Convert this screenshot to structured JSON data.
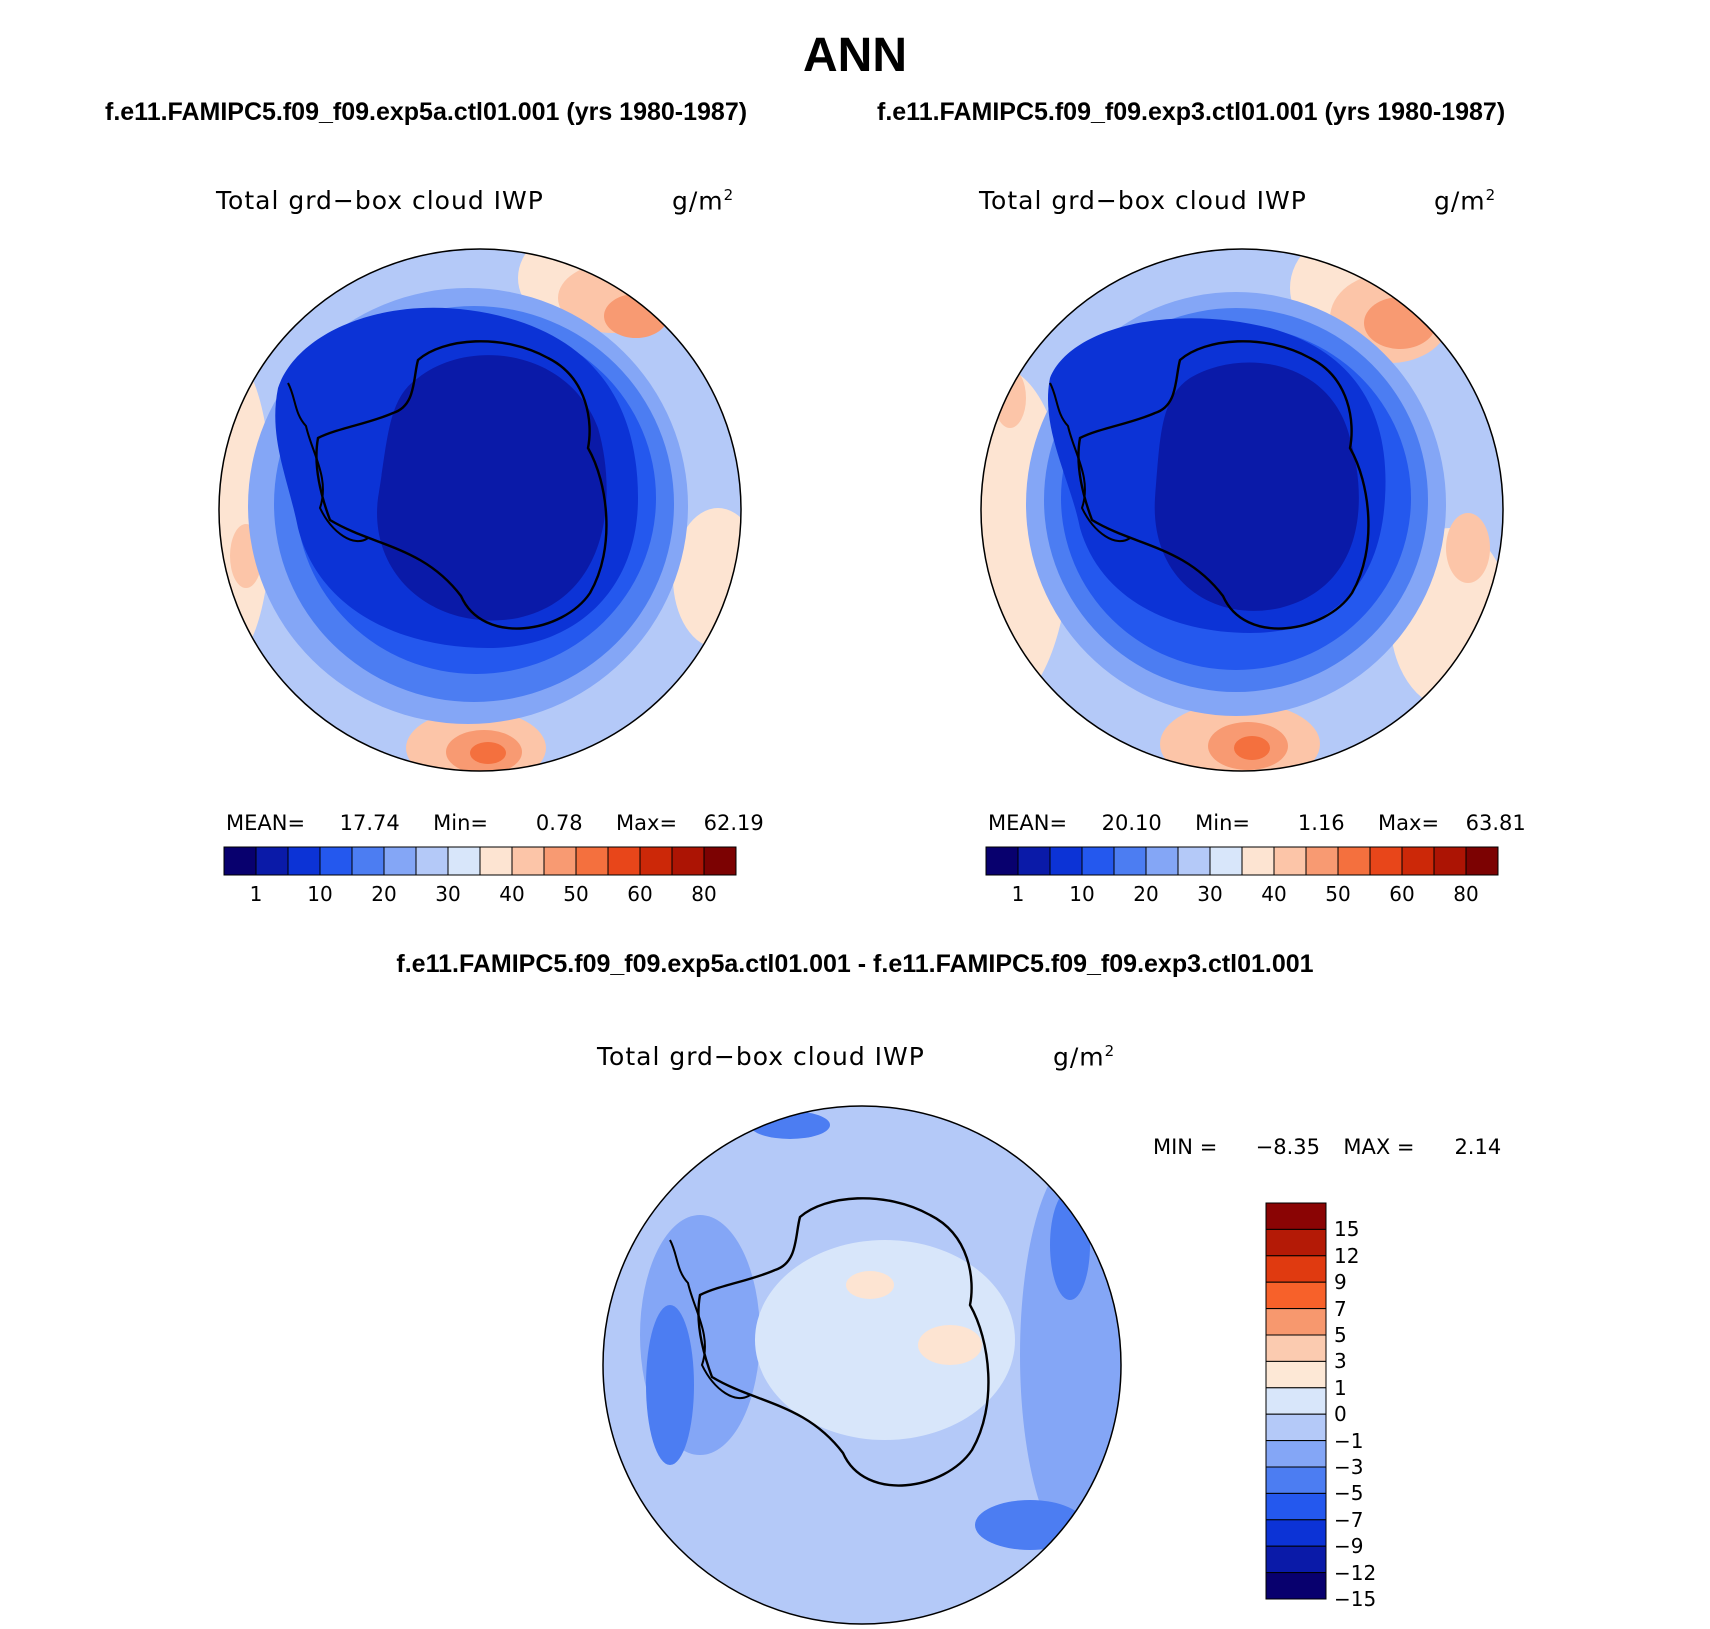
{
  "title": "ANN",
  "panels": [
    {
      "run_title": "f.e11.FAMIPC5.f09_f09.exp5a.ctl01.001 (yrs 1980-1987)",
      "variable": "Total grd−box cloud IWP",
      "units": "g/m",
      "units_sup": "2",
      "mean_label": "MEAN=",
      "mean": "17.74",
      "min_label": "Min=",
      "min": "0.78",
      "max_label": "Max=",
      "max": "62.19"
    },
    {
      "run_title": "f.e11.FAMIPC5.f09_f09.exp3.ctl01.001 (yrs 1980-1987)",
      "variable": "Total grd−box cloud IWP",
      "units": "g/m",
      "units_sup": "2",
      "mean_label": "MEAN=",
      "mean": "20.10",
      "min_label": "Min=",
      "min": "1.16",
      "max_label": "Max=",
      "max": "63.81"
    }
  ],
  "diff_panel": {
    "title": "f.e11.FAMIPC5.f09_f09.exp5a.ctl01.001 - f.e11.FAMIPC5.f09_f09.exp3.ctl01.001",
    "variable": "Total grd−box cloud IWP",
    "units": "g/m",
    "units_sup": "2",
    "min_label": "MIN =",
    "min": "−8.35",
    "max_label": "MAX =",
    "max": "2.14"
  },
  "colorbar_top": {
    "colors": [
      "#08006e",
      "#0a1aa8",
      "#0c33d6",
      "#2458ee",
      "#4c7df2",
      "#84a6f6",
      "#b4c9f8",
      "#d8e6fa",
      "#fde4d2",
      "#fcc5a8",
      "#f89a72",
      "#f4703e",
      "#e8461a",
      "#cc2808",
      "#ac1404",
      "#7c0202"
    ],
    "labels": [
      "1",
      "10",
      "20",
      "30",
      "40",
      "50",
      "60",
      "80"
    ]
  },
  "colorbar_diff": {
    "colors": [
      "#8a0404",
      "#b41a06",
      "#e03a10",
      "#f7612a",
      "#f7986e",
      "#fbcbb0",
      "#fde8d6",
      "#d8e6fa",
      "#b4c9f8",
      "#84a6f6",
      "#4c7df2",
      "#2458ee",
      "#0c33d6",
      "#0a1aa8",
      "#08006e"
    ],
    "labels": [
      "15",
      "12",
      "9",
      "7",
      "5",
      "3",
      "1",
      "0",
      "−1",
      "−3",
      "−5",
      "−7",
      "−9",
      "−12",
      "−15"
    ]
  },
  "map_colors": {
    "c1": "#0a1aa8",
    "c2": "#0c33d6",
    "c3": "#2458ee",
    "c4": "#4c7df2",
    "c5": "#84a6f6",
    "c6": "#b4c9f8",
    "c7": "#d8e6fa",
    "w1": "#fde4d2",
    "w2": "#fcc5a8",
    "w3": "#f89a72",
    "w4": "#f4703e"
  }
}
